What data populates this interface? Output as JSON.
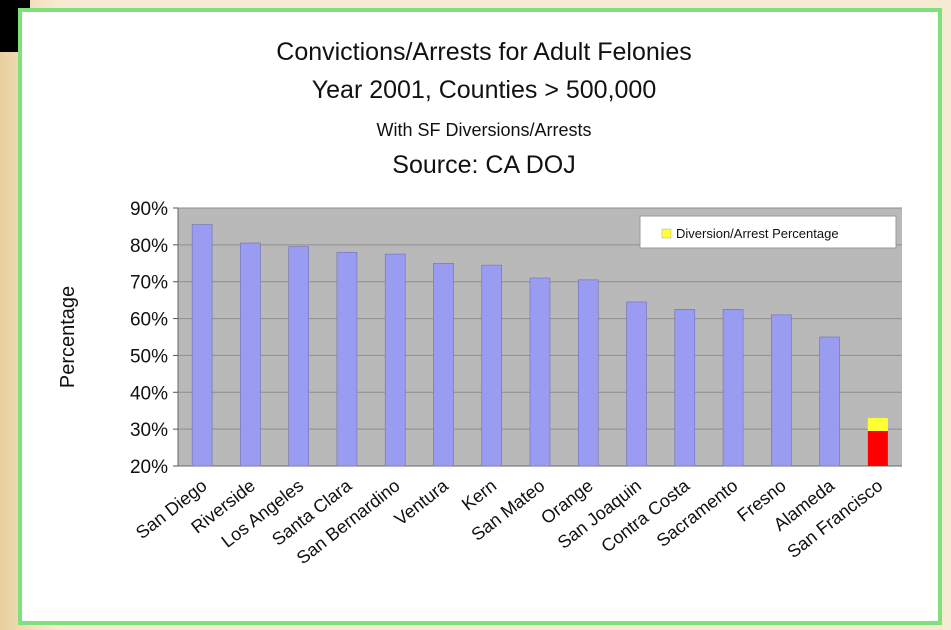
{
  "chart_data": {
    "type": "bar",
    "title": "Convictions/Arrests for Adult Felonies",
    "subtitle_lines": [
      "Year 2001, Counties > 500,000",
      "With SF Diversions/Arrests",
      "Source: CA DOJ"
    ],
    "xlabel": "",
    "ylabel": "Percentage",
    "ylim": [
      20,
      90
    ],
    "yticks": [
      "20%",
      "30%",
      "40%",
      "50%",
      "60%",
      "70%",
      "80%",
      "90%"
    ],
    "ytick_values": [
      20,
      30,
      40,
      50,
      60,
      70,
      80,
      90
    ],
    "grid": true,
    "legend_position": "top-right",
    "categories": [
      "San Diego",
      "Riverside",
      "Los Angeles",
      "Santa Clara",
      "San Bernardino",
      "Ventura",
      "Kern",
      "San Mateo",
      "Orange",
      "San Joaquin",
      "Contra Costa",
      "Sacramento",
      "Fresno",
      "Alameda",
      "San Francisco"
    ],
    "series": [
      {
        "name": "",
        "values": [
          85.5,
          80.5,
          79.5,
          78,
          77.5,
          75,
          74.5,
          71,
          70.5,
          64.5,
          62.5,
          62.5,
          61,
          55,
          29.5
        ]
      },
      {
        "name": "Diversion/Arrest Percentage",
        "stacked_on_category": "San Francisco",
        "values": [
          0,
          0,
          0,
          0,
          0,
          0,
          0,
          0,
          0,
          0,
          0,
          0,
          0,
          0,
          3.5
        ]
      }
    ],
    "colors": {
      "bar": "#9a9cf2",
      "highlight_bar": "#ff0000",
      "diversion": "#ffff33",
      "plot_background": "#b9b9b9",
      "gridline": "#8e8e8e"
    }
  }
}
